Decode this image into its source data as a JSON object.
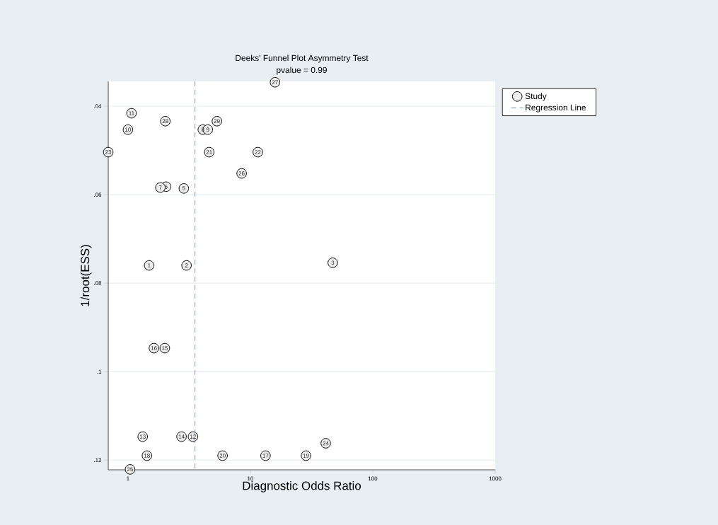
{
  "chart_data": {
    "type": "scatter",
    "title": "Deeks' Funnel Plot Asymmetry Test",
    "subtitle": "pvalue =  0.99",
    "xlabel": "Diagnostic Odds Ratio",
    "ylabel": "1/root(ESS)",
    "log": "x",
    "grid": "y",
    "legend": "top right",
    "marker": "circle",
    "xlim": [
      0.69,
      1000
    ],
    "xticks": [
      1,
      10,
      100,
      1000
    ],
    "ylim": [
      0.1222,
      0.0344
    ],
    "yticks": [
      {
        "value": 0.04,
        "label": ".04"
      },
      {
        "value": 0.06,
        "label": ".06"
      },
      {
        "value": 0.08,
        "label": ".08"
      },
      {
        "value": 0.1,
        "label": ".1"
      },
      {
        "value": 0.12,
        "label": ".12"
      }
    ],
    "series": [
      {
        "name": "Study",
        "color": "#eeeeee",
        "x": [
          1.49,
          3.01,
          47.1,
          2.86,
          2.05,
          1.84,
          4.09,
          4.49,
          1.0,
          1.07,
          3.4,
          1.32,
          2.74,
          2.0,
          1.63,
          13.3,
          1.43,
          28.5,
          5.93,
          4.61,
          11.5,
          0.69,
          41.3,
          1.04,
          8.49,
          15.9,
          2.02,
          5.33
        ],
        "values": [
          0.076,
          0.076,
          0.0754,
          0.0586,
          0.0582,
          0.0584,
          0.0453,
          0.0453,
          0.0453,
          0.0416,
          0.1147,
          0.1147,
          0.1147,
          0.0947,
          0.0947,
          0.119,
          0.119,
          0.119,
          0.119,
          0.0504,
          0.0504,
          0.0504,
          0.1162,
          0.1221,
          0.0552,
          0.0346,
          0.0434,
          0.0434
        ]
      },
      {
        "name": "Regression Line",
        "type": "line",
        "color": "#6a8caf",
        "line_style": "dashed",
        "marker": "none",
        "x": [
          3.53,
          3.53
        ],
        "values": [
          0.0344,
          0.1222
        ]
      }
    ],
    "annotations": [
      {
        "text": "1",
        "x": 1.49,
        "y": 0.076
      },
      {
        "text": "2",
        "x": 3.01,
        "y": 0.076
      },
      {
        "text": "3",
        "x": 47.1,
        "y": 0.0754
      },
      {
        "text": "5",
        "x": 2.86,
        "y": 0.0586
      },
      {
        "text": "6",
        "x": 2.05,
        "y": 0.0582
      },
      {
        "text": "7",
        "x": 1.84,
        "y": 0.0584
      },
      {
        "text": "8",
        "x": 4.09,
        "y": 0.0453
      },
      {
        "text": "9",
        "x": 4.49,
        "y": 0.0453
      },
      {
        "text": "10",
        "x": 1.0,
        "y": 0.0453
      },
      {
        "text": "11",
        "x": 1.07,
        "y": 0.0416
      },
      {
        "text": "12",
        "x": 3.4,
        "y": 0.1147
      },
      {
        "text": "13",
        "x": 1.32,
        "y": 0.1147
      },
      {
        "text": "14",
        "x": 2.74,
        "y": 0.1147
      },
      {
        "text": "15",
        "x": 2.0,
        "y": 0.0947
      },
      {
        "text": "16",
        "x": 1.63,
        "y": 0.0947
      },
      {
        "text": "17",
        "x": 13.3,
        "y": 0.119
      },
      {
        "text": "18",
        "x": 1.43,
        "y": 0.119
      },
      {
        "text": "19",
        "x": 28.5,
        "y": 0.119
      },
      {
        "text": "20",
        "x": 5.93,
        "y": 0.119
      },
      {
        "text": "21",
        "x": 4.61,
        "y": 0.0504
      },
      {
        "text": "22",
        "x": 11.5,
        "y": 0.0504
      },
      {
        "text": "23",
        "x": 0.69,
        "y": 0.0504
      },
      {
        "text": "24",
        "x": 41.3,
        "y": 0.1162
      },
      {
        "text": "25",
        "x": 1.04,
        "y": 0.1221
      },
      {
        "text": "26",
        "x": 8.49,
        "y": 0.0552
      },
      {
        "text": "27",
        "x": 15.9,
        "y": 0.0346
      },
      {
        "text": "28",
        "x": 2.02,
        "y": 0.0434
      },
      {
        "text": "29",
        "x": 5.33,
        "y": 0.0434
      }
    ]
  }
}
